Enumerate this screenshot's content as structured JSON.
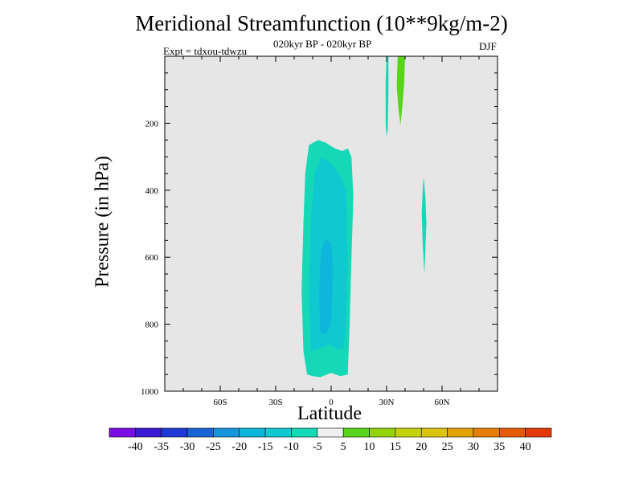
{
  "chart_data": {
    "type": "heatmap",
    "title": "Meridional Streamfunction (10**9kg/m-2)",
    "subtitle": "020kyr BP - 020kyr BP",
    "left_label": "Expt = tdxou-tdwzu",
    "right_label": "DJF",
    "xlabel": "Latitude",
    "ylabel": "Pressure (in hPa)",
    "xlim": [
      -90,
      90
    ],
    "ylim": [
      1000,
      0
    ],
    "x_ticks": [
      {
        "value": -60,
        "label": "60S"
      },
      {
        "value": -30,
        "label": "30S"
      },
      {
        "value": 0,
        "label": "0"
      },
      {
        "value": 30,
        "label": "30N"
      },
      {
        "value": 60,
        "label": "60N"
      }
    ],
    "y_ticks": [
      {
        "value": 200,
        "label": "200"
      },
      {
        "value": 400,
        "label": "400"
      },
      {
        "value": 600,
        "label": "600"
      },
      {
        "value": 800,
        "label": "800"
      },
      {
        "value": 1000,
        "label": "1000"
      }
    ],
    "background_color": "#e6e6e6",
    "colorbar": {
      "colors": [
        "#7a0de2",
        "#3c19d2",
        "#1f3ad5",
        "#1a65d5",
        "#1595db",
        "#0fb6dc",
        "#10c8d0",
        "#15d8b6",
        "#f0f0f0",
        "#57d51a",
        "#93d40f",
        "#c6d20e",
        "#dcc30d",
        "#e3a208",
        "#e57f08",
        "#e55b08",
        "#e23a0a"
      ],
      "labels": [
        "-40",
        "-35",
        "-30",
        "-25",
        "-20",
        "-15",
        "-10",
        "-5",
        "5",
        "10",
        "15",
        "20",
        "25",
        "30",
        "35",
        "40"
      ]
    },
    "regions": [
      {
        "value": -7.5,
        "color": "#15d8b6",
        "polygon": [
          [
            -13,
            950
          ],
          [
            -15,
            880
          ],
          [
            -16,
            700
          ],
          [
            -15,
            500
          ],
          [
            -14,
            350
          ],
          [
            -12,
            265
          ],
          [
            -7,
            250
          ],
          [
            -3,
            258
          ],
          [
            2,
            275
          ],
          [
            6,
            283
          ],
          [
            9,
            275
          ],
          [
            11,
            300
          ],
          [
            12,
            420
          ],
          [
            11,
            600
          ],
          [
            10,
            800
          ],
          [
            9,
            950
          ],
          [
            5,
            955
          ],
          [
            0,
            945
          ],
          [
            -6,
            958
          ],
          [
            -10,
            955
          ]
        ]
      },
      {
        "value": -12.5,
        "color": "#10c8d0",
        "polygon": [
          [
            -11,
            880
          ],
          [
            -12,
            700
          ],
          [
            -11,
            500
          ],
          [
            -9,
            350
          ],
          [
            -5,
            302
          ],
          [
            0,
            320
          ],
          [
            5,
            360
          ],
          [
            8,
            400
          ],
          [
            9,
            600
          ],
          [
            8,
            800
          ],
          [
            7,
            870
          ],
          [
            3,
            875
          ],
          [
            -1,
            860
          ],
          [
            -6,
            872
          ]
        ]
      },
      {
        "value": -17.5,
        "color": "#0fb6dc",
        "polygon": [
          [
            -6,
            825
          ],
          [
            -6.5,
            700
          ],
          [
            -5.5,
            580
          ],
          [
            -3,
            545
          ],
          [
            0,
            560
          ],
          [
            1,
            640
          ],
          [
            0,
            800
          ],
          [
            -3,
            830
          ]
        ]
      },
      {
        "value": -7.5,
        "color": "#15d8b6",
        "polygon": [
          [
            30,
            0
          ],
          [
            31,
            0
          ],
          [
            31,
            100
          ],
          [
            30.6,
            220
          ],
          [
            30,
            240
          ],
          [
            29.5,
            200
          ],
          [
            29.5,
            80
          ]
        ]
      },
      {
        "value": 7.5,
        "color": "#57d51a",
        "polygon": [
          [
            36,
            0
          ],
          [
            40,
            0
          ],
          [
            39.5,
            80
          ],
          [
            38.5,
            150
          ],
          [
            37.5,
            205
          ],
          [
            36.5,
            160
          ],
          [
            35.5,
            90
          ]
        ]
      },
      {
        "value": -7.5,
        "color": "#15d8b6",
        "polygon": [
          [
            50,
            360
          ],
          [
            51,
            420
          ],
          [
            51.5,
            500
          ],
          [
            51,
            570
          ],
          [
            50.5,
            650
          ],
          [
            49.5,
            560
          ],
          [
            49,
            470
          ],
          [
            49.5,
            400
          ]
        ]
      }
    ]
  }
}
